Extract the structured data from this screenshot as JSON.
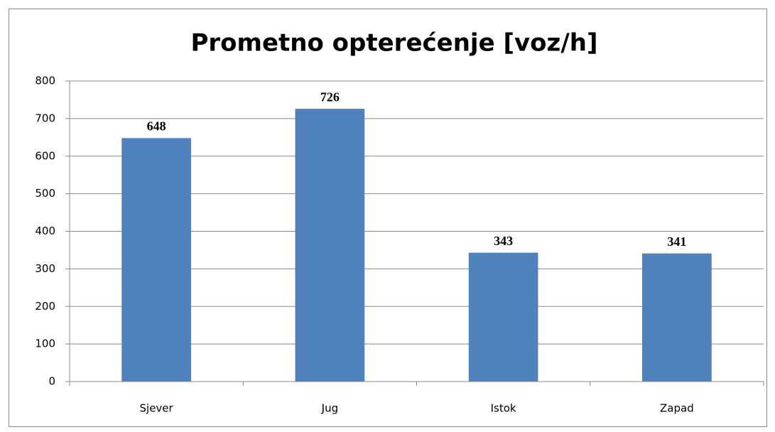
{
  "chart_data": {
    "type": "bar",
    "title": "Prometno opterećenje [voz/h]",
    "categories": [
      "Sjever",
      "Jug",
      "Istok",
      "Zapad"
    ],
    "values": [
      648,
      726,
      343,
      341
    ],
    "color": "#4f81bd",
    "ylim": [
      0,
      800
    ],
    "yticks": [
      0,
      100,
      200,
      300,
      400,
      500,
      600,
      700,
      800
    ],
    "grid": true
  }
}
